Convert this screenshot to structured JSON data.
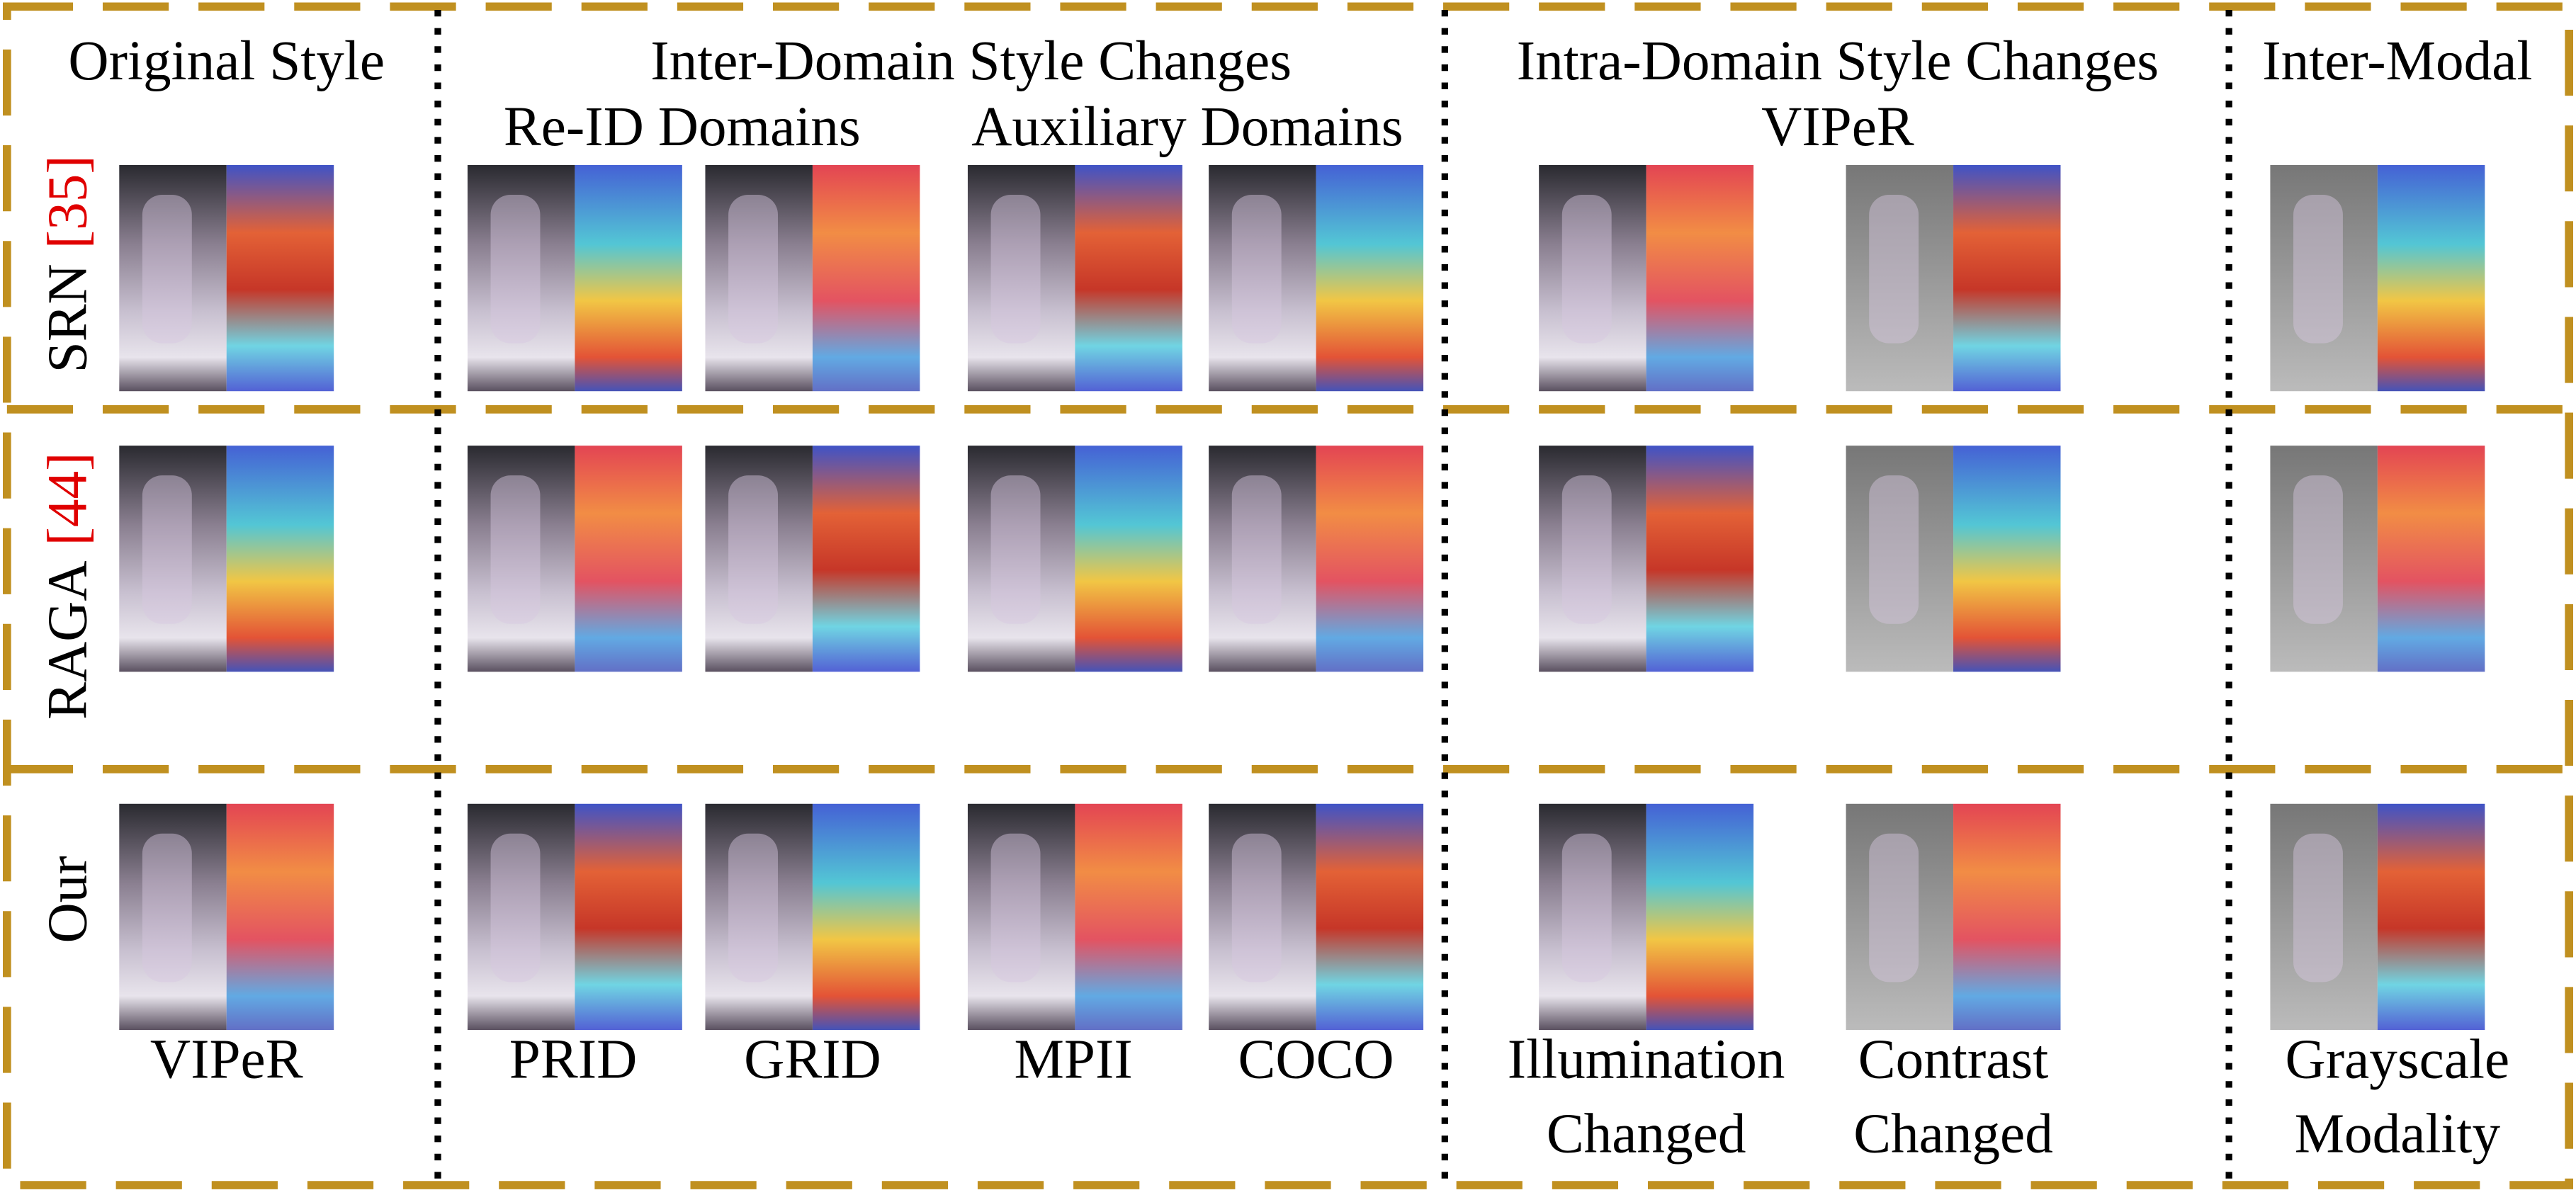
{
  "headers": [
    "Original Style",
    "Inter-Domain Style Changes",
    "Intra-Domain Style Changes",
    "Inter-Modal"
  ],
  "subheaders": [
    "Re-ID Domains",
    "Auxiliary Domains",
    "VIPeR"
  ],
  "rows": [
    {
      "method": "SRN",
      "ref": "[35]"
    },
    {
      "method": "RAGA",
      "ref": "[44]"
    },
    {
      "method": "Our"
    }
  ],
  "captions": [
    [
      "VIPeR"
    ],
    [
      "PRID"
    ],
    [
      "GRID"
    ],
    [
      "MPII"
    ],
    [
      "COCO"
    ],
    [
      "Illumination",
      "Changed"
    ],
    [
      "Contrast",
      "Changed"
    ],
    [
      "Grayscale",
      "Modality"
    ]
  ]
}
